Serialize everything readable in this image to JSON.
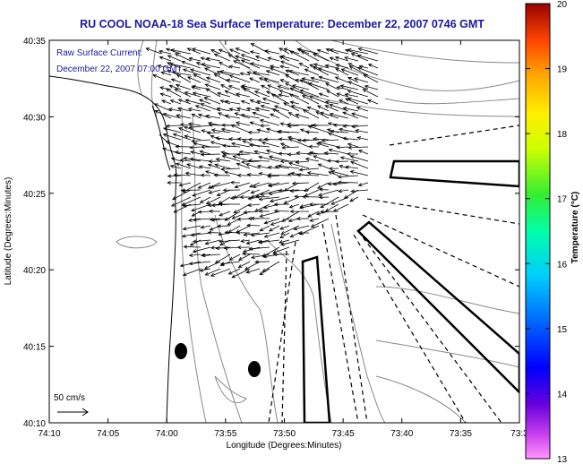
{
  "title": "RU COOL  NOAA-18  Sea Surface Temperature:  December 22, 2007 0746 GMT",
  "subtitle_line1": "Raw Surface Current:",
  "subtitle_line2": "December 22, 2007 07:00 GMT",
  "axes": {
    "xlabel": "Longitude (Degrees:Minutes)",
    "ylabel": "Latitude (Degrees:Minutes)",
    "xticks": [
      "74:10",
      "74:05",
      "74:00",
      "73:55",
      "73:50",
      "73:45",
      "73:40",
      "73:35",
      "73:3"
    ],
    "yticks": [
      "40:35",
      "40:30",
      "40:25",
      "40:20",
      "40:15",
      "40:10"
    ]
  },
  "colorbar": {
    "label": "Temperature (°C)",
    "ticks": [
      "20",
      "19",
      "18",
      "17",
      "16",
      "15",
      "14",
      "13"
    ],
    "range": [
      13,
      20
    ]
  },
  "scale": {
    "label": "50 cm/s"
  },
  "colors": {
    "title": "#1a1aa0",
    "coast": "#000000",
    "bathymetry": "#888888",
    "frame": "#000000"
  }
}
